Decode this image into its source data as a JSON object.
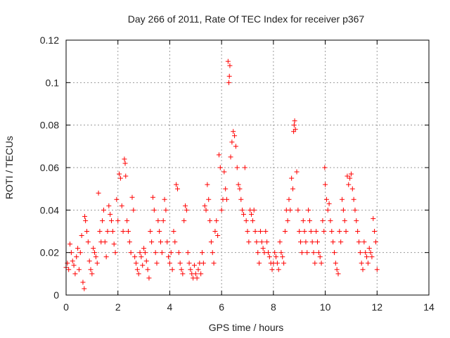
{
  "chart_data": {
    "type": "scatter",
    "title": "Day 266 of 2011, Rate Of TEC Index for receiver p367",
    "xlabel": "GPS time / hours",
    "ylabel": "ROTI / TECUs",
    "xlim": [
      0,
      14
    ],
    "ylim": [
      0,
      0.12
    ],
    "x_ticks": [
      0,
      2,
      4,
      6,
      8,
      10,
      12,
      14
    ],
    "y_ticks": [
      0,
      0.02,
      0.04,
      0.06,
      0.08,
      0.1,
      0.12
    ],
    "x_tick_labels": [
      "0",
      "2",
      "4",
      "6",
      "8",
      "10",
      "12",
      "14"
    ],
    "y_tick_labels": [
      "0",
      "0.02",
      "0.04",
      "0.06",
      "0.08",
      "0.1",
      "0.12"
    ],
    "grid": true,
    "marker": "+",
    "marker_color": "#ff0000",
    "series": [
      {
        "name": "ROTI",
        "points": [
          [
            0.0,
            0.013
          ],
          [
            0.05,
            0.015
          ],
          [
            0.1,
            0.012
          ],
          [
            0.15,
            0.024
          ],
          [
            0.2,
            0.02
          ],
          [
            0.25,
            0.016
          ],
          [
            0.3,
            0.014
          ],
          [
            0.35,
            0.01
          ],
          [
            0.4,
            0.018
          ],
          [
            0.45,
            0.022
          ],
          [
            0.5,
            0.012
          ],
          [
            0.55,
            0.02
          ],
          [
            0.6,
            0.028
          ],
          [
            0.65,
            0.006
          ],
          [
            0.7,
            0.003
          ],
          [
            0.72,
            0.037
          ],
          [
            0.75,
            0.035
          ],
          [
            0.8,
            0.03
          ],
          [
            0.85,
            0.025
          ],
          [
            0.9,
            0.016
          ],
          [
            0.95,
            0.012
          ],
          [
            1.0,
            0.01
          ],
          [
            1.05,
            0.022
          ],
          [
            1.1,
            0.02
          ],
          [
            1.15,
            0.018
          ],
          [
            1.2,
            0.015
          ],
          [
            1.25,
            0.048
          ],
          [
            1.3,
            0.03
          ],
          [
            1.35,
            0.025
          ],
          [
            1.4,
            0.035
          ],
          [
            1.45,
            0.04
          ],
          [
            1.5,
            0.025
          ],
          [
            1.55,
            0.018
          ],
          [
            1.6,
            0.03
          ],
          [
            1.65,
            0.042
          ],
          [
            1.7,
            0.038
          ],
          [
            1.75,
            0.035
          ],
          [
            1.8,
            0.03
          ],
          [
            1.85,
            0.024
          ],
          [
            1.9,
            0.02
          ],
          [
            1.95,
            0.045
          ],
          [
            2.0,
            0.035
          ],
          [
            2.05,
            0.057
          ],
          [
            2.1,
            0.055
          ],
          [
            2.15,
            0.042
          ],
          [
            2.2,
            0.03
          ],
          [
            2.25,
            0.064
          ],
          [
            2.28,
            0.062
          ],
          [
            2.3,
            0.056
          ],
          [
            2.35,
            0.035
          ],
          [
            2.4,
            0.03
          ],
          [
            2.45,
            0.025
          ],
          [
            2.5,
            0.02
          ],
          [
            2.55,
            0.046
          ],
          [
            2.6,
            0.04
          ],
          [
            2.65,
            0.018
          ],
          [
            2.7,
            0.015
          ],
          [
            2.75,
            0.012
          ],
          [
            2.8,
            0.01
          ],
          [
            2.85,
            0.02
          ],
          [
            2.9,
            0.018
          ],
          [
            2.95,
            0.014
          ],
          [
            3.0,
            0.022
          ],
          [
            3.05,
            0.02
          ],
          [
            3.1,
            0.016
          ],
          [
            3.15,
            0.012
          ],
          [
            3.2,
            0.008
          ],
          [
            3.25,
            0.03
          ],
          [
            3.3,
            0.025
          ],
          [
            3.35,
            0.046
          ],
          [
            3.4,
            0.04
          ],
          [
            3.45,
            0.02
          ],
          [
            3.5,
            0.015
          ],
          [
            3.55,
            0.035
          ],
          [
            3.6,
            0.03
          ],
          [
            3.65,
            0.025
          ],
          [
            3.7,
            0.02
          ],
          [
            3.75,
            0.035
          ],
          [
            3.8,
            0.045
          ],
          [
            3.85,
            0.04
          ],
          [
            3.9,
            0.025
          ],
          [
            3.95,
            0.018
          ],
          [
            4.0,
            0.015
          ],
          [
            4.05,
            0.02
          ],
          [
            4.1,
            0.012
          ],
          [
            4.15,
            0.03
          ],
          [
            4.2,
            0.025
          ],
          [
            4.25,
            0.052
          ],
          [
            4.3,
            0.05
          ],
          [
            4.35,
            0.02
          ],
          [
            4.4,
            0.015
          ],
          [
            4.45,
            0.012
          ],
          [
            4.5,
            0.01
          ],
          [
            4.55,
            0.035
          ],
          [
            4.6,
            0.042
          ],
          [
            4.65,
            0.04
          ],
          [
            4.7,
            0.02
          ],
          [
            4.75,
            0.015
          ],
          [
            4.8,
            0.012
          ],
          [
            4.85,
            0.01
          ],
          [
            4.9,
            0.008
          ],
          [
            4.95,
            0.014
          ],
          [
            5.0,
            0.01
          ],
          [
            5.05,
            0.008
          ],
          [
            5.1,
            0.012
          ],
          [
            5.15,
            0.015
          ],
          [
            5.2,
            0.01
          ],
          [
            5.25,
            0.02
          ],
          [
            5.3,
            0.015
          ],
          [
            5.35,
            0.042
          ],
          [
            5.4,
            0.04
          ],
          [
            5.45,
            0.052
          ],
          [
            5.5,
            0.045
          ],
          [
            5.55,
            0.035
          ],
          [
            5.6,
            0.025
          ],
          [
            5.65,
            0.02
          ],
          [
            5.7,
            0.015
          ],
          [
            5.75,
            0.03
          ],
          [
            5.8,
            0.035
          ],
          [
            5.85,
            0.028
          ],
          [
            5.9,
            0.066
          ],
          [
            5.95,
            0.06
          ],
          [
            6.0,
            0.04
          ],
          [
            6.05,
            0.045
          ],
          [
            6.1,
            0.058
          ],
          [
            6.15,
            0.05
          ],
          [
            6.2,
            0.045
          ],
          [
            6.25,
            0.11
          ],
          [
            6.28,
            0.1
          ],
          [
            6.3,
            0.103
          ],
          [
            6.32,
            0.108
          ],
          [
            6.35,
            0.065
          ],
          [
            6.4,
            0.072
          ],
          [
            6.45,
            0.077
          ],
          [
            6.5,
            0.075
          ],
          [
            6.55,
            0.07
          ],
          [
            6.6,
            0.06
          ],
          [
            6.65,
            0.052
          ],
          [
            6.7,
            0.05
          ],
          [
            6.75,
            0.045
          ],
          [
            6.8,
            0.04
          ],
          [
            6.85,
            0.038
          ],
          [
            6.9,
            0.06
          ],
          [
            6.95,
            0.035
          ],
          [
            7.0,
            0.03
          ],
          [
            7.05,
            0.025
          ],
          [
            7.1,
            0.04
          ],
          [
            7.15,
            0.038
          ],
          [
            7.2,
            0.035
          ],
          [
            7.25,
            0.04
          ],
          [
            7.3,
            0.03
          ],
          [
            7.35,
            0.025
          ],
          [
            7.4,
            0.02
          ],
          [
            7.45,
            0.015
          ],
          [
            7.5,
            0.03
          ],
          [
            7.55,
            0.025
          ],
          [
            7.6,
            0.022
          ],
          [
            7.65,
            0.02
          ],
          [
            7.7,
            0.03
          ],
          [
            7.75,
            0.025
          ],
          [
            7.8,
            0.02
          ],
          [
            7.85,
            0.018
          ],
          [
            7.9,
            0.015
          ],
          [
            7.95,
            0.012
          ],
          [
            8.0,
            0.015
          ],
          [
            8.05,
            0.02
          ],
          [
            8.1,
            0.018
          ],
          [
            8.15,
            0.015
          ],
          [
            8.2,
            0.012
          ],
          [
            8.25,
            0.025
          ],
          [
            8.3,
            0.02
          ],
          [
            8.35,
            0.018
          ],
          [
            8.4,
            0.015
          ],
          [
            8.45,
            0.03
          ],
          [
            8.5,
            0.04
          ],
          [
            8.55,
            0.035
          ],
          [
            8.6,
            0.045
          ],
          [
            8.65,
            0.04
          ],
          [
            8.7,
            0.055
          ],
          [
            8.75,
            0.05
          ],
          [
            8.78,
            0.077
          ],
          [
            8.8,
            0.08
          ],
          [
            8.82,
            0.082
          ],
          [
            8.85,
            0.078
          ],
          [
            8.9,
            0.058
          ],
          [
            8.95,
            0.04
          ],
          [
            9.0,
            0.03
          ],
          [
            9.05,
            0.025
          ],
          [
            9.1,
            0.02
          ],
          [
            9.15,
            0.035
          ],
          [
            9.2,
            0.03
          ],
          [
            9.25,
            0.025
          ],
          [
            9.3,
            0.02
          ],
          [
            9.35,
            0.04
          ],
          [
            9.4,
            0.035
          ],
          [
            9.45,
            0.03
          ],
          [
            9.5,
            0.025
          ],
          [
            9.55,
            0.02
          ],
          [
            9.6,
            0.015
          ],
          [
            9.65,
            0.03
          ],
          [
            9.7,
            0.025
          ],
          [
            9.75,
            0.02
          ],
          [
            9.8,
            0.018
          ],
          [
            9.85,
            0.015
          ],
          [
            9.9,
            0.035
          ],
          [
            9.95,
            0.03
          ],
          [
            9.98,
            0.06
          ],
          [
            10.0,
            0.052
          ],
          [
            10.05,
            0.045
          ],
          [
            10.1,
            0.04
          ],
          [
            10.15,
            0.043
          ],
          [
            10.2,
            0.035
          ],
          [
            10.25,
            0.03
          ],
          [
            10.3,
            0.025
          ],
          [
            10.35,
            0.02
          ],
          [
            10.4,
            0.015
          ],
          [
            10.45,
            0.012
          ],
          [
            10.5,
            0.01
          ],
          [
            10.55,
            0.03
          ],
          [
            10.6,
            0.025
          ],
          [
            10.65,
            0.045
          ],
          [
            10.7,
            0.04
          ],
          [
            10.75,
            0.035
          ],
          [
            10.8,
            0.03
          ],
          [
            10.85,
            0.056
          ],
          [
            10.9,
            0.052
          ],
          [
            10.95,
            0.055
          ],
          [
            11.0,
            0.057
          ],
          [
            11.05,
            0.05
          ],
          [
            11.1,
            0.045
          ],
          [
            11.15,
            0.04
          ],
          [
            11.2,
            0.035
          ],
          [
            11.25,
            0.03
          ],
          [
            11.3,
            0.025
          ],
          [
            11.35,
            0.02
          ],
          [
            11.4,
            0.015
          ],
          [
            11.45,
            0.012
          ],
          [
            11.5,
            0.025
          ],
          [
            11.55,
            0.02
          ],
          [
            11.6,
            0.018
          ],
          [
            11.65,
            0.015
          ],
          [
            11.7,
            0.022
          ],
          [
            11.75,
            0.02
          ],
          [
            11.8,
            0.018
          ],
          [
            11.85,
            0.036
          ],
          [
            11.9,
            0.03
          ],
          [
            11.95,
            0.025
          ],
          [
            12.0,
            0.012
          ]
        ]
      }
    ]
  }
}
